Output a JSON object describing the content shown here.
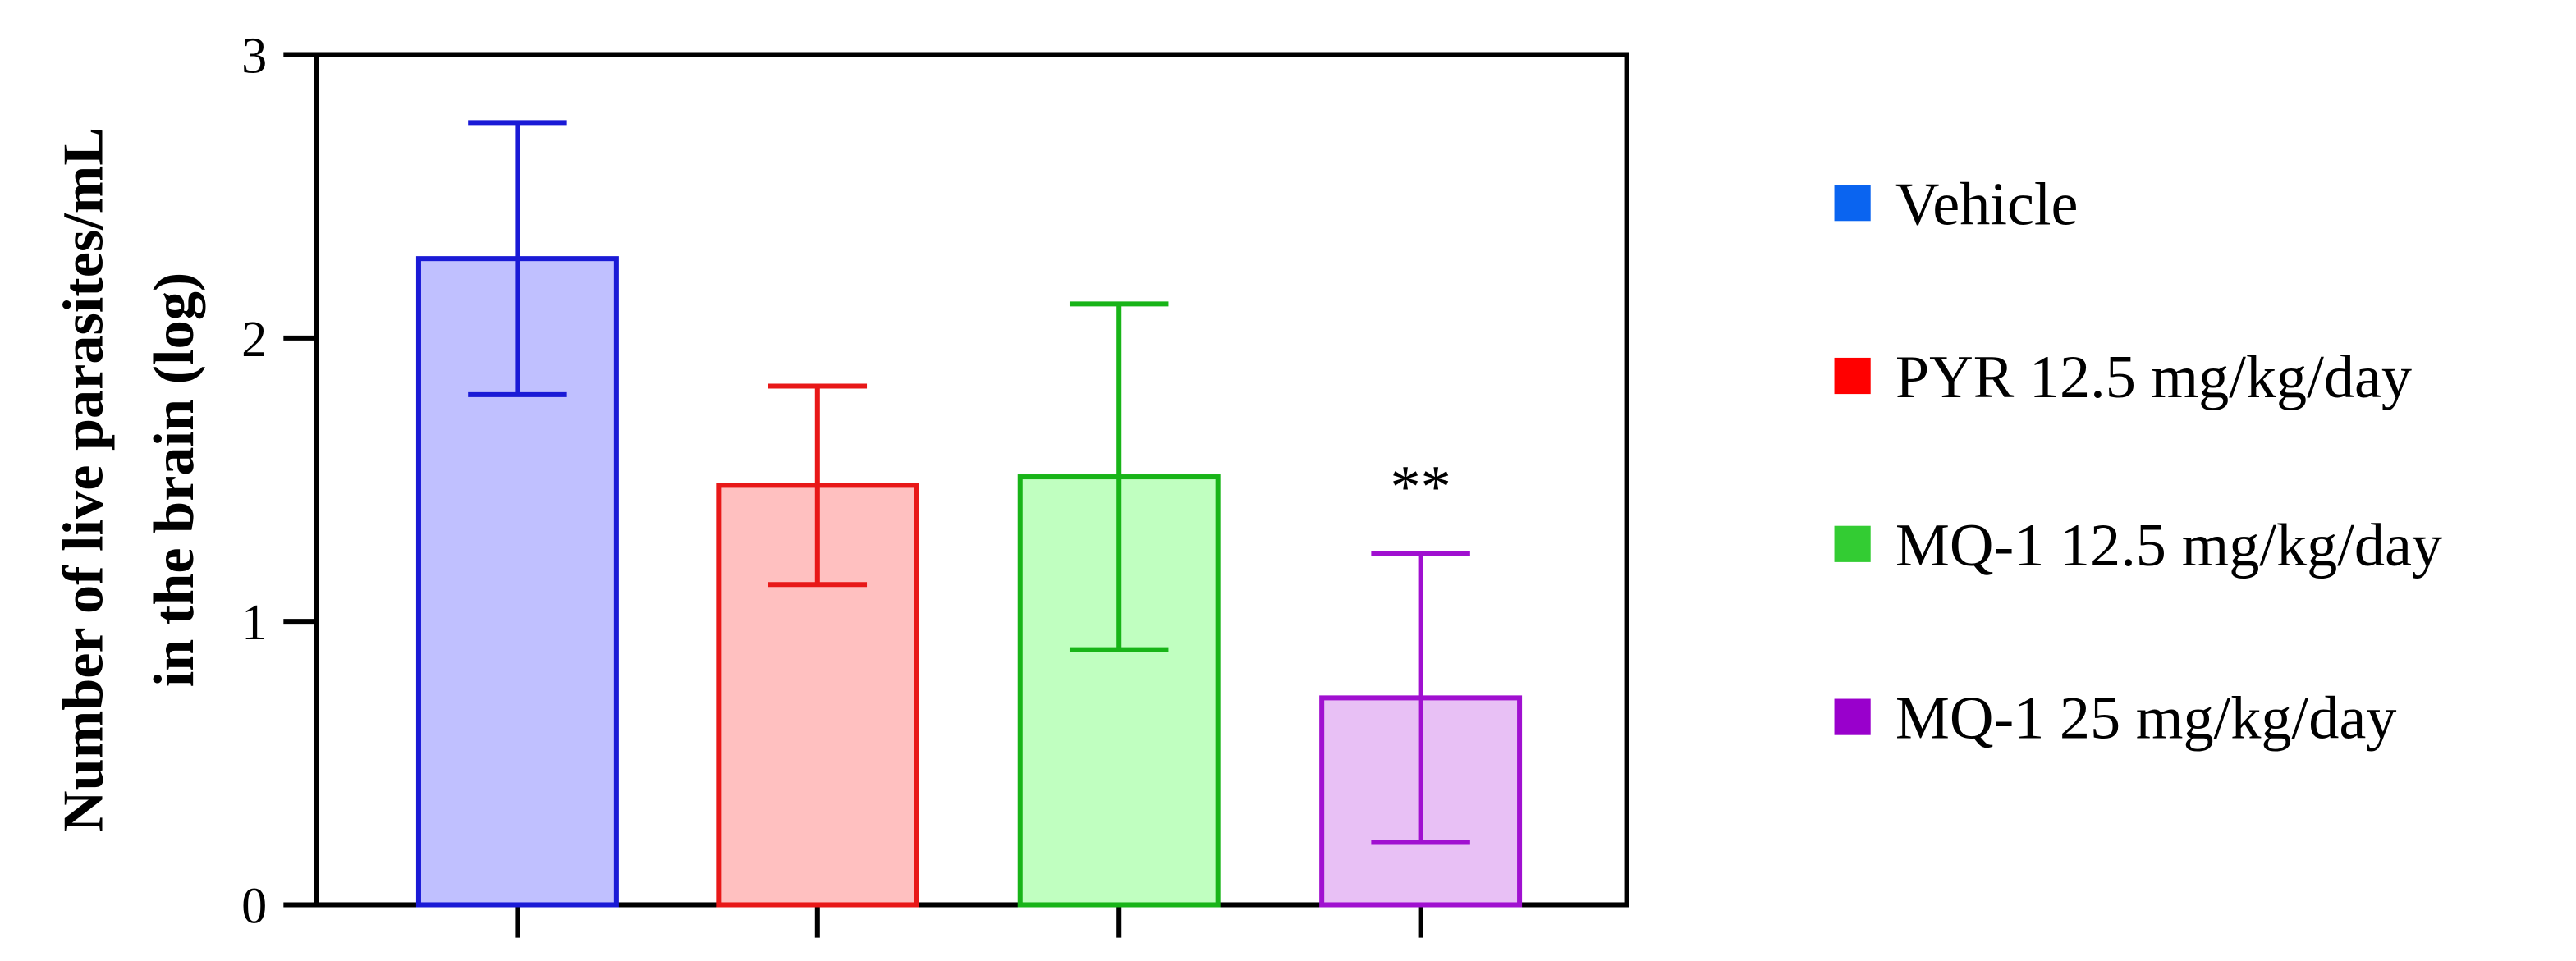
{
  "chart_data": {
    "type": "bar",
    "ylabel": [
      "Number of live parasites/mL",
      "in the brain (log)"
    ],
    "categories": [
      null,
      null,
      null,
      null
    ],
    "values": [
      2.28,
      1.48,
      1.51,
      0.73
    ],
    "errors": [
      0.48,
      0.35,
      0.61,
      0.51
    ],
    "colors": [
      "#1a1ad6",
      "#e81818",
      "#18b418",
      "#a010d0"
    ],
    "fill_colors": [
      "#c0c0ff",
      "#ffc0c0",
      "#c0ffc0",
      "#e8c0f5"
    ],
    "legend": [
      "Vehicle",
      "PYR 12.5 mg/kg/day",
      "MQ-1 12.5 mg/kg/day",
      "MQ-1 25 mg/kg/day"
    ],
    "legend_colors": [
      "#0a64f0",
      "#ff0000",
      "#33cc33",
      "#9900cc"
    ],
    "annotation": "**",
    "ylim": [
      0,
      3
    ],
    "yticks": [
      0,
      1,
      2,
      3
    ]
  }
}
